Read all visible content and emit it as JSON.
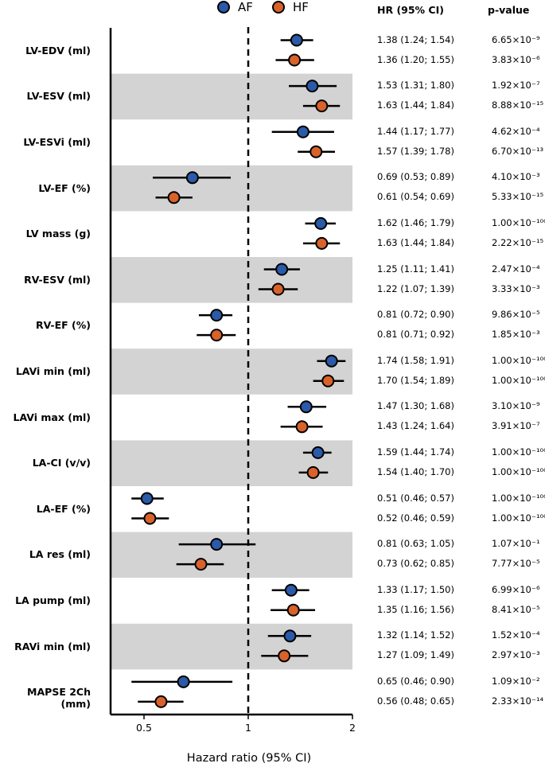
{
  "chart_data": {
    "type": "forest",
    "xlabel": "Hazard ratio (95% CI)",
    "xscale": "log",
    "xlim": [
      0.4,
      2.0
    ],
    "xticks": [
      {
        "value": 0.5,
        "label": "0.5"
      },
      {
        "value": 1,
        "label": "1"
      },
      {
        "value": 2,
        "label": "2"
      }
    ],
    "reference_line": 1,
    "columns": {
      "hr_header": "HR (95% CI)",
      "p_header": "p-value"
    },
    "series": [
      {
        "name": "AF",
        "color": "#2a5aa8"
      },
      {
        "name": "HF",
        "color": "#d9622b"
      }
    ],
    "rows": [
      {
        "label": "LV-EDV (ml)",
        "shaded": false,
        "AF": {
          "hr": 1.38,
          "lo": 1.24,
          "hi": 1.54,
          "text": "1.38 (1.24; 1.54)",
          "p": "6.65×10⁻⁹"
        },
        "HF": {
          "hr": 1.36,
          "lo": 1.2,
          "hi": 1.55,
          "text": "1.36 (1.20; 1.55)",
          "p": "3.83×10⁻⁶"
        }
      },
      {
        "label": "LV-ESV (ml)",
        "shaded": true,
        "AF": {
          "hr": 1.53,
          "lo": 1.31,
          "hi": 1.8,
          "text": "1.53 (1.31; 1.80)",
          "p": "1.92×10⁻⁷"
        },
        "HF": {
          "hr": 1.63,
          "lo": 1.44,
          "hi": 1.84,
          "text": "1.63 (1.44; 1.84)",
          "p": "8.88×10⁻¹⁵"
        }
      },
      {
        "label": "LV-ESVi (ml)",
        "shaded": false,
        "AF": {
          "hr": 1.44,
          "lo": 1.17,
          "hi": 1.77,
          "text": "1.44 (1.17; 1.77)",
          "p": "4.62×10⁻⁴"
        },
        "HF": {
          "hr": 1.57,
          "lo": 1.39,
          "hi": 1.78,
          "text": "1.57 (1.39; 1.78)",
          "p": "6.70×10⁻¹³"
        }
      },
      {
        "label": "LV-EF (%)",
        "shaded": true,
        "AF": {
          "hr": 0.69,
          "lo": 0.53,
          "hi": 0.89,
          "text": "0.69 (0.53; 0.89)",
          "p": "4.10×10⁻³"
        },
        "HF": {
          "hr": 0.61,
          "lo": 0.54,
          "hi": 0.69,
          "text": "0.61 (0.54; 0.69)",
          "p": "5.33×10⁻¹⁵"
        }
      },
      {
        "label": "LV mass (g)",
        "shaded": false,
        "AF": {
          "hr": 1.62,
          "lo": 1.46,
          "hi": 1.79,
          "text": "1.62 (1.46; 1.79)",
          "p": "1.00×10⁻¹⁰⁰"
        },
        "HF": {
          "hr": 1.63,
          "lo": 1.44,
          "hi": 1.84,
          "text": "1.63 (1.44; 1.84)",
          "p": "2.22×10⁻¹⁵"
        }
      },
      {
        "label": "RV-ESV (ml)",
        "shaded": true,
        "AF": {
          "hr": 1.25,
          "lo": 1.11,
          "hi": 1.41,
          "text": "1.25 (1.11; 1.41)",
          "p": "2.47×10⁻⁴"
        },
        "HF": {
          "hr": 1.22,
          "lo": 1.07,
          "hi": 1.39,
          "text": "1.22 (1.07; 1.39)",
          "p": "3.33×10⁻³"
        }
      },
      {
        "label": "RV-EF (%)",
        "shaded": false,
        "AF": {
          "hr": 0.81,
          "lo": 0.72,
          "hi": 0.9,
          "text": "0.81 (0.72; 0.90)",
          "p": "9.86×10⁻⁵"
        },
        "HF": {
          "hr": 0.81,
          "lo": 0.71,
          "hi": 0.92,
          "text": "0.81 (0.71; 0.92)",
          "p": "1.85×10⁻³"
        }
      },
      {
        "label": "LAVi min (ml)",
        "shaded": true,
        "AF": {
          "hr": 1.74,
          "lo": 1.58,
          "hi": 1.91,
          "text": "1.74 (1.58; 1.91)",
          "p": "1.00×10⁻¹⁰⁰"
        },
        "HF": {
          "hr": 1.7,
          "lo": 1.54,
          "hi": 1.89,
          "text": "1.70 (1.54; 1.89)",
          "p": "1.00×10⁻¹⁰⁰"
        }
      },
      {
        "label": "LAVi max (ml)",
        "shaded": false,
        "AF": {
          "hr": 1.47,
          "lo": 1.3,
          "hi": 1.68,
          "text": "1.47 (1.30; 1.68)",
          "p": "3.10×10⁻⁹"
        },
        "HF": {
          "hr": 1.43,
          "lo": 1.24,
          "hi": 1.64,
          "text": "1.43 (1.24; 1.64)",
          "p": "3.91×10⁻⁷"
        }
      },
      {
        "label": "LA-CI (v/v)",
        "shaded": true,
        "AF": {
          "hr": 1.59,
          "lo": 1.44,
          "hi": 1.74,
          "text": "1.59 (1.44; 1.74)",
          "p": "1.00×10⁻¹⁰⁰"
        },
        "HF": {
          "hr": 1.54,
          "lo": 1.4,
          "hi": 1.7,
          "text": "1.54 (1.40; 1.70)",
          "p": "1.00×10⁻¹⁰⁰"
        }
      },
      {
        "label": "LA-EF (%)",
        "shaded": false,
        "AF": {
          "hr": 0.51,
          "lo": 0.46,
          "hi": 0.57,
          "text": "0.51 (0.46; 0.57)",
          "p": "1.00×10⁻¹⁰⁰"
        },
        "HF": {
          "hr": 0.52,
          "lo": 0.46,
          "hi": 0.59,
          "text": "0.52 (0.46; 0.59)",
          "p": "1.00×10⁻¹⁰⁰"
        }
      },
      {
        "label": "LA res (ml)",
        "shaded": true,
        "AF": {
          "hr": 0.81,
          "lo": 0.63,
          "hi": 1.05,
          "text": "0.81 (0.63; 1.05)",
          "p": "1.07×10⁻¹"
        },
        "HF": {
          "hr": 0.73,
          "lo": 0.62,
          "hi": 0.85,
          "text": "0.73 (0.62; 0.85)",
          "p": "7.77×10⁻⁵"
        }
      },
      {
        "label": "LA pump (ml)",
        "shaded": false,
        "AF": {
          "hr": 1.33,
          "lo": 1.17,
          "hi": 1.5,
          "text": "1.33 (1.17; 1.50)",
          "p": "6.99×10⁻⁶"
        },
        "HF": {
          "hr": 1.35,
          "lo": 1.16,
          "hi": 1.56,
          "text": "1.35 (1.16; 1.56)",
          "p": "8.41×10⁻⁵"
        }
      },
      {
        "label": "RAVi min (ml)",
        "shaded": true,
        "AF": {
          "hr": 1.32,
          "lo": 1.14,
          "hi": 1.52,
          "text": "1.32 (1.14; 1.52)",
          "p": "1.52×10⁻⁴"
        },
        "HF": {
          "hr": 1.27,
          "lo": 1.09,
          "hi": 1.49,
          "text": "1.27 (1.09; 1.49)",
          "p": "2.97×10⁻³"
        }
      },
      {
        "label": "MAPSE 2Ch (mm)",
        "shaded": false,
        "AF": {
          "hr": 0.65,
          "lo": 0.46,
          "hi": 0.9,
          "text": "0.65 (0.46; 0.90)",
          "p": "1.09×10⁻²"
        },
        "HF": {
          "hr": 0.56,
          "lo": 0.48,
          "hi": 0.65,
          "text": "0.56 (0.48; 0.65)",
          "p": "2.33×10⁻¹⁴"
        }
      }
    ]
  }
}
